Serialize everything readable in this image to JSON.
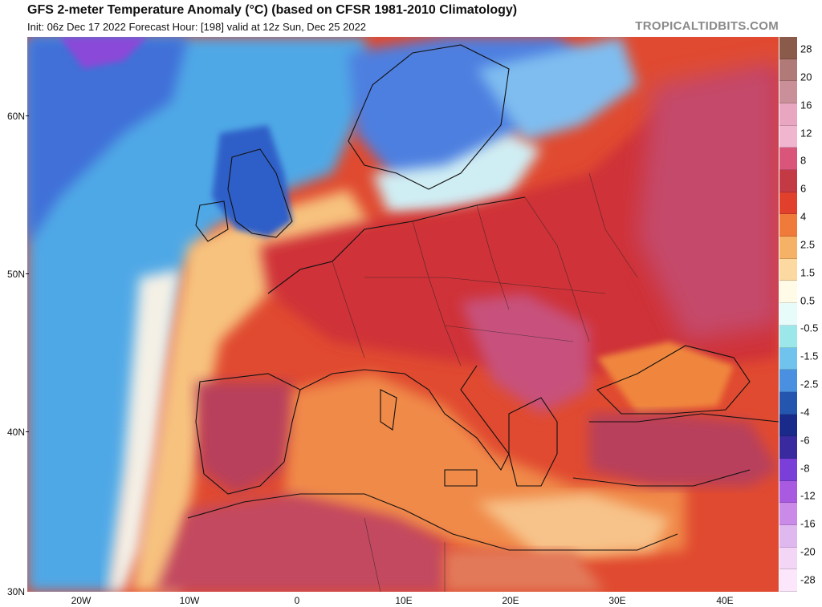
{
  "header": {
    "title": "GFS 2-meter Temperature Anomaly (°C) (based on CFSR 1981-2010 Climatology)",
    "subtitle": "Init: 06z Dec 17 2022   Forecast Hour: [198]   valid at 12z Sun, Dec 25 2022",
    "brand": "TROPICALTIDBITS.COM"
  },
  "map": {
    "region": "Europe / Mediterranean",
    "lat_labels": [
      "60N",
      "50N",
      "40N",
      "30N"
    ],
    "lon_labels": [
      "20W",
      "10W",
      "0",
      "10E",
      "20E",
      "30E",
      "40E"
    ],
    "colors": {
      "ocean_cold": "#5fb0e8",
      "ocean_deep_cold": "#3a5fd0",
      "arctic_purple": "#7a3fd8",
      "warm_orange": "#f08a4a",
      "warm_red": "#d03030",
      "hot_magenta": "#c84a78",
      "pale": "#fbe6c4"
    }
  },
  "colorbar": {
    "labels": [
      "28",
      "20",
      "16",
      "12",
      "8",
      "6",
      "4",
      "2.5",
      "1.5",
      "0.5",
      "-0.5",
      "-1.5",
      "-2.5",
      "-4",
      "-6",
      "-8",
      "-12",
      "-16",
      "-20",
      "-28"
    ],
    "colors": [
      "#8a5a4a",
      "#b07a78",
      "#c9909a",
      "#e8a6c0",
      "#f0b6d0",
      "#d9557a",
      "#c43a44",
      "#e0402c",
      "#f07a3a",
      "#f5b266",
      "#fbd9a0",
      "#fffbe6",
      "#e8fbfb",
      "#9be7ea",
      "#6fc3ec",
      "#4a90e0",
      "#2456b0",
      "#1a2a8a",
      "#3a2aa0",
      "#7a3fd8",
      "#a85ae0",
      "#c98ae8",
      "#e0b8f0",
      "#f3d6f5",
      "#fbe6fb"
    ]
  }
}
